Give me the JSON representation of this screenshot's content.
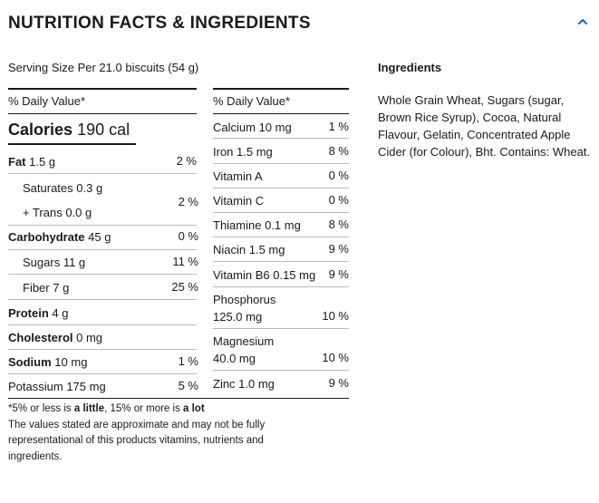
{
  "header": {
    "title": "NUTRITION FACTS & INGREDIENTS",
    "collapse_icon": "chevron-up-icon"
  },
  "serving_size": "Serving Size Per 21.0 biscuits (54 g)",
  "left_column": {
    "heading": "% Daily Value*",
    "calories_label": "Calories",
    "calories_value": "190 cal",
    "fat": {
      "label": "Fat",
      "amount": "1.5 g",
      "pct": "2 %"
    },
    "saturates": {
      "label": "Saturates",
      "amount": "0.3 g"
    },
    "trans": {
      "label": "+ Trans",
      "amount": "0.0 g"
    },
    "sat_trans_pct": "2 %",
    "carbohydrate": {
      "label": "Carbohydrate",
      "amount": "45 g",
      "pct": "0 %"
    },
    "sugars": {
      "label": "Sugars",
      "amount": "11 g",
      "pct": "11 %"
    },
    "fiber": {
      "label": "Fiber",
      "amount": "7 g",
      "pct": "25 %"
    },
    "protein": {
      "label": "Protein",
      "amount": "4 g"
    },
    "cholesterol": {
      "label": "Cholesterol",
      "amount": "0 mg"
    },
    "sodium": {
      "label": "Sodium",
      "amount": "10 mg",
      "pct": "1 %"
    },
    "potassium": {
      "label": "Potassium",
      "amount": "175 mg",
      "pct": "5 %"
    }
  },
  "right_column": {
    "heading": "% Daily Value*",
    "rows": [
      {
        "name": "Calcium 10 mg",
        "pct": "1 %"
      },
      {
        "name": "Iron 1.5 mg",
        "pct": "8 %"
      },
      {
        "name": "Vitamin A",
        "pct": "0 %"
      },
      {
        "name": "Vitamin C",
        "pct": "0 %"
      },
      {
        "name": "Thiamine 0.1 mg",
        "pct": "8 %"
      },
      {
        "name": "Niacin 1.5 mg",
        "pct": "9 %"
      },
      {
        "name": "Vitamin B6 0.15 mg",
        "pct": "9 %"
      },
      {
        "name_line1": "Phosphorus",
        "name_line2": "125.0 mg",
        "pct": "10 %"
      },
      {
        "name_line1": "Magnesium",
        "name_line2": "40.0 mg",
        "pct": "10 %"
      },
      {
        "name": "Zinc 1.0 mg",
        "pct": "9 %"
      }
    ]
  },
  "footnote": {
    "part1": "*5% or less is ",
    "bold1": "a little",
    "part2": ", 15% or more is ",
    "bold2": "a lot",
    "disclaimer": "The values stated are approximate and may not be fully representational of this products vitamins, nutrients and ingredients."
  },
  "ingredients": {
    "title": "Ingredients",
    "text": "Whole Grain Wheat, Sugars (sugar, Brown Rice Syrup), Cocoa, Natural Flavour, Gelatin, Concentrated Apple Cider (for Colour), Bht. Contains: Wheat."
  }
}
